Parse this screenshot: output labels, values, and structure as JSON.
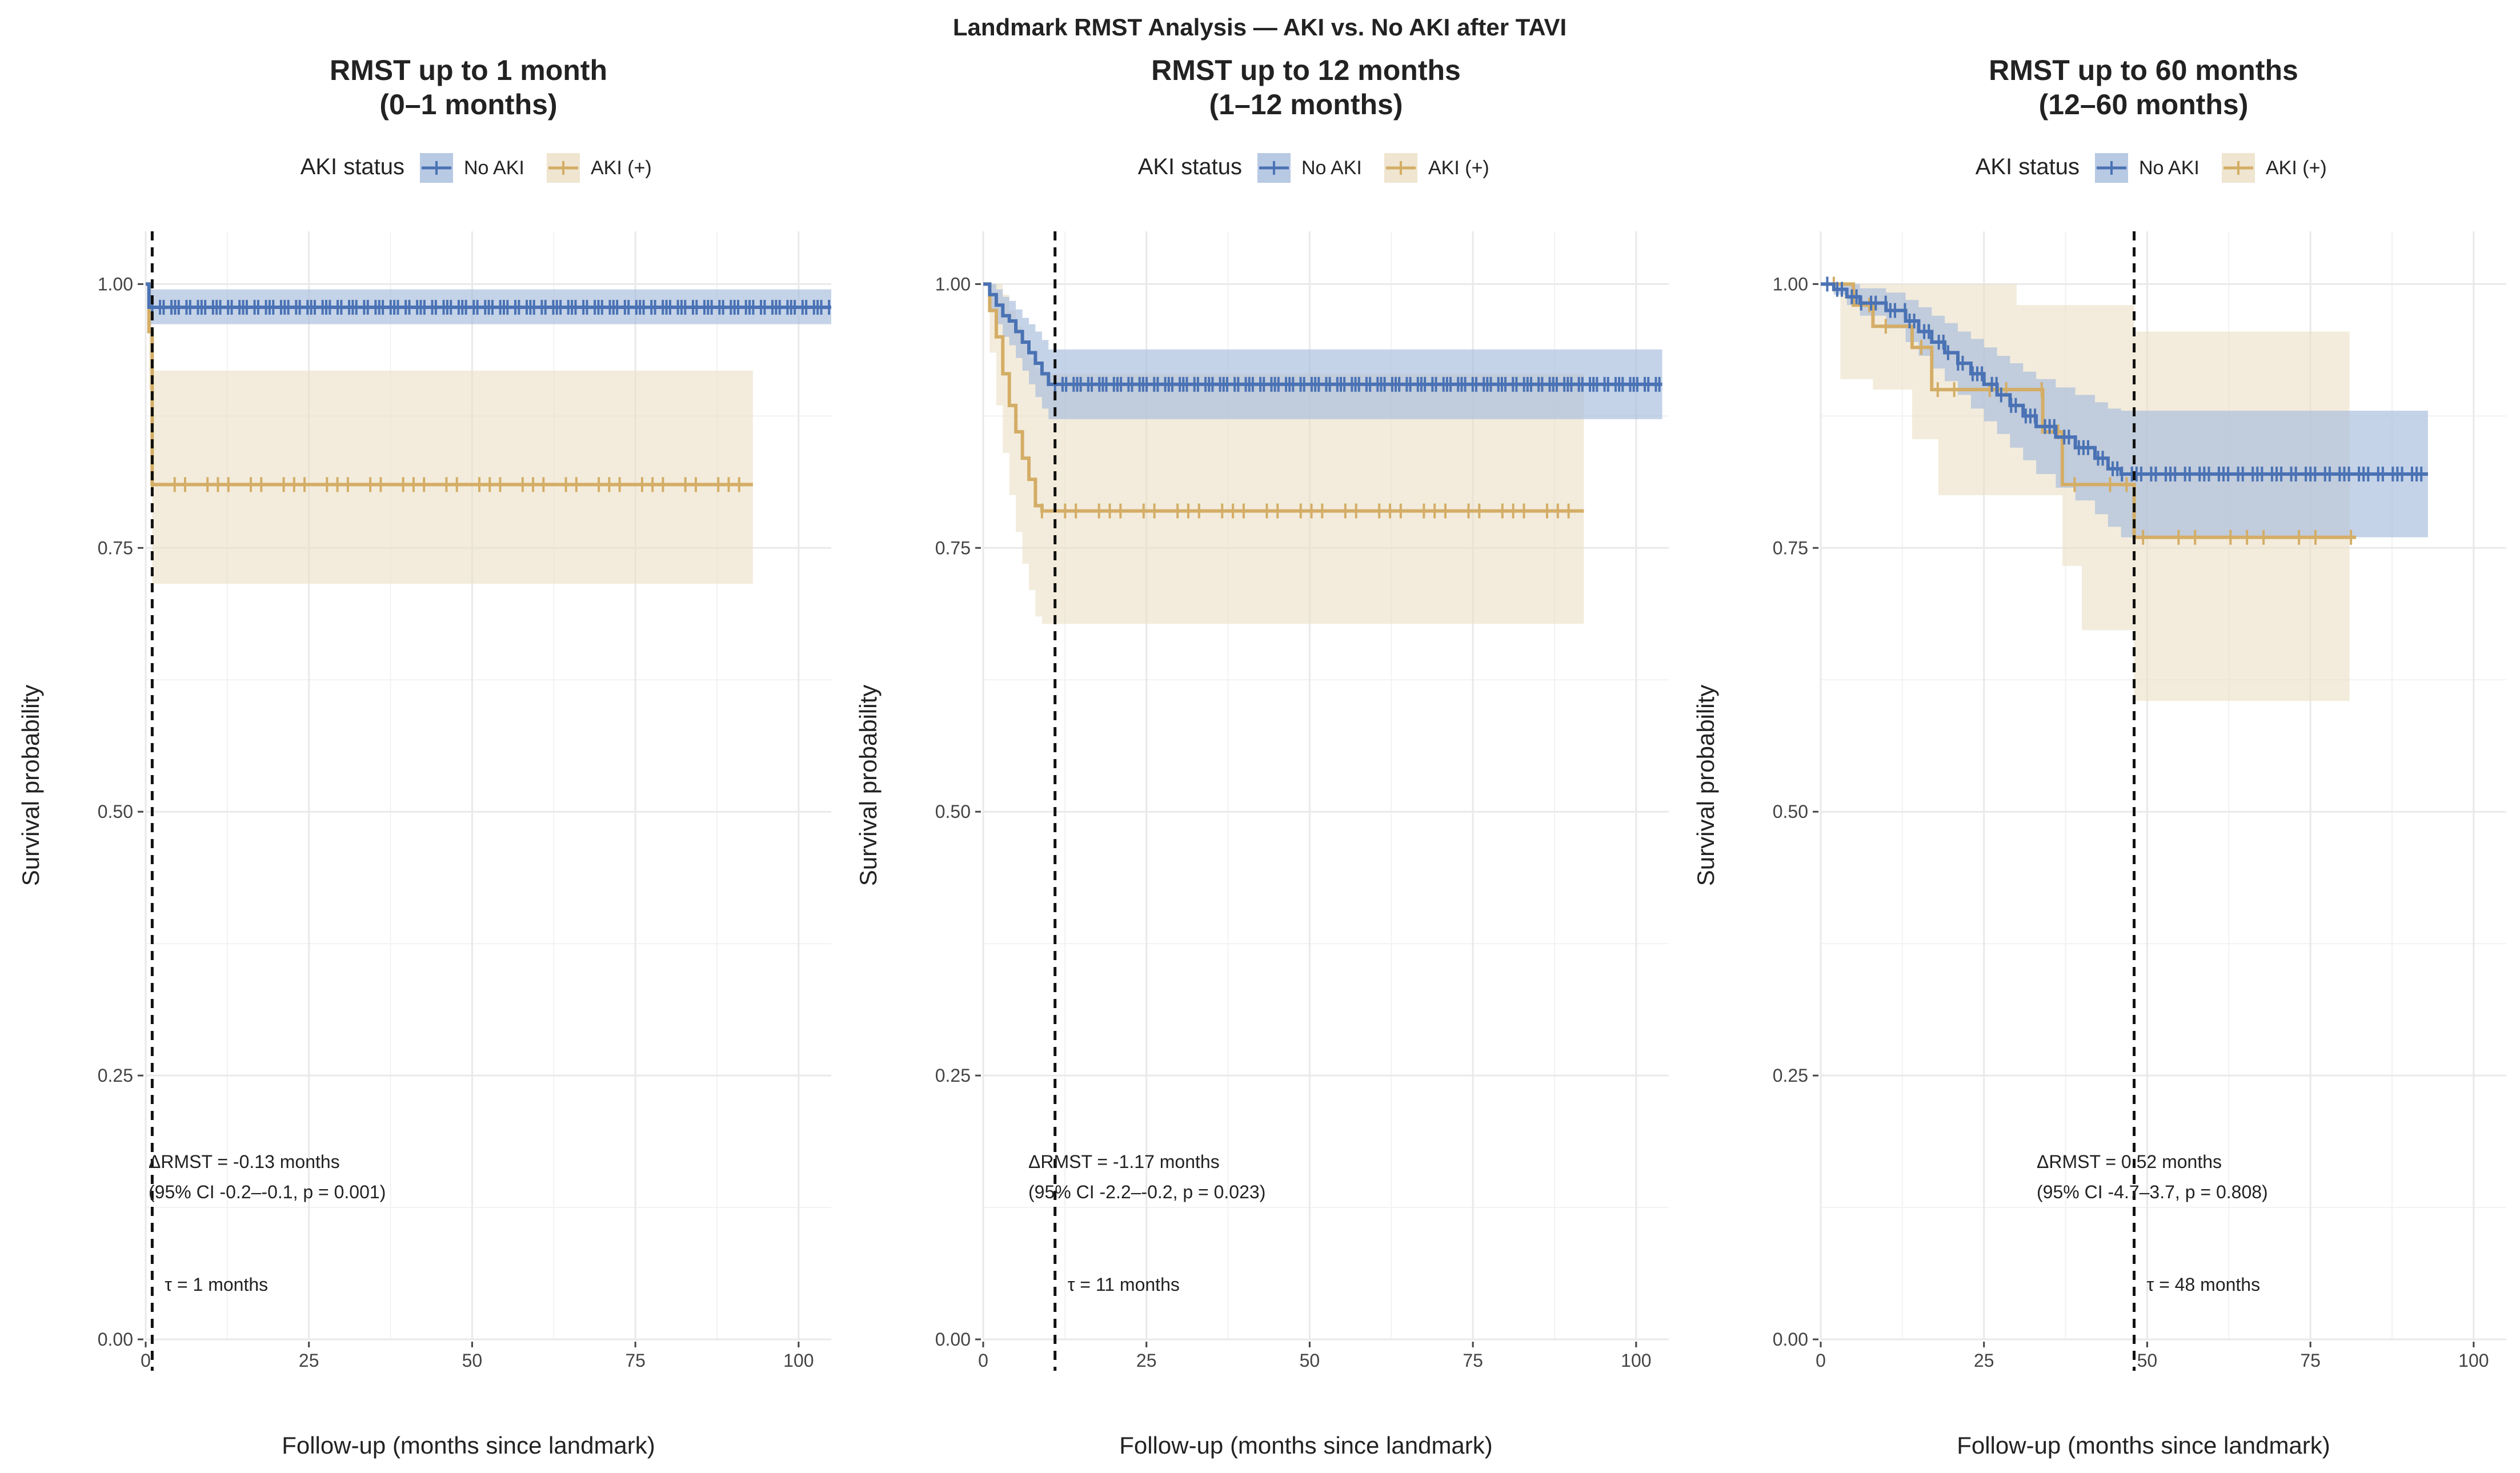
{
  "figure_title": "Landmark RMST Analysis — AKI vs. No AKI after TAVI",
  "colors": {
    "no_aki": "#4a72b4",
    "aki": "#d4ad66",
    "no_aki_band": "#a6bcdc",
    "aki_band": "#ebdfc4",
    "grid": "#e9e9e9",
    "text": "#222222"
  },
  "chart_data": [
    {
      "type": "line",
      "subtype": "kaplan-meier",
      "title": "RMST up to 1 month",
      "subtitle": "(0–1 months)",
      "legend_title": "AKI status",
      "xlabel": "Follow-up (months since landmark)",
      "ylabel": "Survival probability",
      "xlim": [
        0,
        105
      ],
      "ylim": [
        0,
        1.05
      ],
      "x_ticks": [
        0,
        25,
        50,
        75,
        100
      ],
      "x_tick_labels": [
        "0",
        "25",
        "50",
        "75",
        "100"
      ],
      "y_ticks": [
        0,
        0.25,
        0.5,
        0.75,
        1.0
      ],
      "y_tick_labels": [
        "0.00",
        "0.25",
        "0.50",
        "0.75",
        "1.00"
      ],
      "landmark": 1,
      "tau_label": "τ = 1 months",
      "delta_label": "ΔRMST = -0.13 months",
      "ci_label": "(95% CI -0.2–-0.1, p = 0.001)",
      "series": [
        {
          "name": "No AKI",
          "steps": [
            [
              0,
              1.0
            ],
            [
              0.5,
              0.978
            ],
            [
              105,
              0.978
            ]
          ],
          "ci": [
            [
              0,
              1.0,
              1.0
            ],
            [
              0.5,
              0.962,
              0.995
            ],
            [
              105,
              0.962,
              0.995
            ]
          ],
          "censor_range": [
            1,
            105
          ],
          "censor_count": 130
        },
        {
          "name": "AKI (+)",
          "steps": [
            [
              0,
              1.0
            ],
            [
              0.5,
              0.955
            ],
            [
              1,
              0.81
            ],
            [
              93,
              0.81
            ]
          ],
          "ci": [
            [
              0,
              1.0,
              1.0
            ],
            [
              0.5,
              0.9,
              1.0
            ],
            [
              1,
              0.716,
              0.918
            ],
            [
              93,
              0.716,
              0.918
            ]
          ],
          "censor_range": [
            1,
            93
          ],
          "censor_count": 40
        }
      ]
    },
    {
      "type": "line",
      "subtype": "kaplan-meier",
      "title": "RMST up to 12 months",
      "subtitle": "(1–12 months)",
      "legend_title": "AKI status",
      "xlabel": "Follow-up (months since landmark)",
      "ylabel": "Survival probability",
      "xlim": [
        0,
        105
      ],
      "ylim": [
        0,
        1.05
      ],
      "x_ticks": [
        0,
        25,
        50,
        75,
        100
      ],
      "x_tick_labels": [
        "0",
        "25",
        "50",
        "75",
        "100"
      ],
      "y_ticks": [
        0,
        0.25,
        0.5,
        0.75,
        1.0
      ],
      "y_tick_labels": [
        "0.00",
        "0.25",
        "0.50",
        "0.75",
        "1.00"
      ],
      "landmark": 11,
      "tau_label": "τ = 11 months",
      "delta_label": "ΔRMST = -1.17 months",
      "ci_label": "(95% CI -2.2–-0.2, p = 0.023)",
      "series": [
        {
          "name": "No AKI",
          "steps": [
            [
              0,
              1.0
            ],
            [
              1,
              0.99
            ],
            [
              2,
              0.98
            ],
            [
              3,
              0.97
            ],
            [
              4,
              0.965
            ],
            [
              5,
              0.955
            ],
            [
              6,
              0.945
            ],
            [
              7,
              0.935
            ],
            [
              8,
              0.925
            ],
            [
              9,
              0.915
            ],
            [
              10,
              0.905
            ],
            [
              104,
              0.905
            ]
          ],
          "ci": [
            [
              0,
              1.0,
              1.0
            ],
            [
              1,
              0.975,
              1.0
            ],
            [
              2,
              0.962,
              0.995
            ],
            [
              3,
              0.95,
              0.988
            ],
            [
              4,
              0.942,
              0.984
            ],
            [
              5,
              0.93,
              0.976
            ],
            [
              6,
              0.918,
              0.968
            ],
            [
              7,
              0.905,
              0.962
            ],
            [
              8,
              0.893,
              0.955
            ],
            [
              9,
              0.882,
              0.947
            ],
            [
              10,
              0.872,
              0.938
            ],
            [
              104,
              0.872,
              0.938
            ]
          ],
          "censor_range": [
            11,
            104
          ],
          "censor_count": 120
        },
        {
          "name": "AKI (+)",
          "steps": [
            [
              0,
              1.0
            ],
            [
              1,
              0.975
            ],
            [
              2,
              0.95
            ],
            [
              3,
              0.915
            ],
            [
              4,
              0.885
            ],
            [
              5,
              0.86
            ],
            [
              6,
              0.835
            ],
            [
              7,
              0.815
            ],
            [
              8,
              0.79
            ],
            [
              9,
              0.785
            ],
            [
              92,
              0.785
            ]
          ],
          "ci": [
            [
              0,
              1.0,
              1.0
            ],
            [
              1,
              0.935,
              1.0
            ],
            [
              2,
              0.885,
              1.0
            ],
            [
              3,
              0.84,
              0.99
            ],
            [
              4,
              0.8,
              0.975
            ],
            [
              5,
              0.765,
              0.96
            ],
            [
              6,
              0.735,
              0.945
            ],
            [
              7,
              0.71,
              0.93
            ],
            [
              8,
              0.685,
              0.92
            ],
            [
              9,
              0.678,
              0.915
            ],
            [
              92,
              0.678,
              0.915
            ]
          ],
          "censor_range": [
            9,
            92
          ],
          "censor_count": 35
        }
      ]
    },
    {
      "type": "line",
      "subtype": "kaplan-meier",
      "title": "RMST up to 60 months",
      "subtitle": "(12–60 months)",
      "legend_title": "AKI status",
      "xlabel": "Follow-up (months since landmark)",
      "ylabel": "Survival probability",
      "xlim": [
        0,
        105
      ],
      "ylim": [
        0,
        1.05
      ],
      "x_ticks": [
        0,
        25,
        50,
        75,
        100
      ],
      "x_tick_labels": [
        "0",
        "25",
        "50",
        "75",
        "100"
      ],
      "y_ticks": [
        0,
        0.25,
        0.5,
        0.75,
        1.0
      ],
      "y_tick_labels": [
        "0.00",
        "0.25",
        "0.50",
        "0.75",
        "1.00"
      ],
      "landmark": 48,
      "tau_label": "τ = 48 months",
      "delta_label": "ΔRMST = 0.52 months",
      "ci_label": "(95% CI -4.7–3.7, p = 0.808)",
      "series": [
        {
          "name": "No AKI",
          "steps": [
            [
              0,
              1.0
            ],
            [
              2,
              0.995
            ],
            [
              4,
              0.988
            ],
            [
              6,
              0.982
            ],
            [
              10,
              0.975
            ],
            [
              13,
              0.965
            ],
            [
              15,
              0.955
            ],
            [
              17,
              0.945
            ],
            [
              19,
              0.935
            ],
            [
              21,
              0.925
            ],
            [
              23,
              0.915
            ],
            [
              25,
              0.905
            ],
            [
              27,
              0.895
            ],
            [
              29,
              0.885
            ],
            [
              31,
              0.875
            ],
            [
              33,
              0.865
            ],
            [
              36,
              0.855
            ],
            [
              39,
              0.845
            ],
            [
              42,
              0.835
            ],
            [
              44,
              0.825
            ],
            [
              46,
              0.82
            ],
            [
              93,
              0.82
            ]
          ],
          "ci": [
            [
              0,
              1.0,
              1.0
            ],
            [
              2,
              0.99,
              1.0
            ],
            [
              4,
              0.98,
              1.0
            ],
            [
              6,
              0.97,
              0.996
            ],
            [
              10,
              0.958,
              0.992
            ],
            [
              13,
              0.945,
              0.985
            ],
            [
              15,
              0.932,
              0.978
            ],
            [
              17,
              0.92,
              0.97
            ],
            [
              19,
              0.908,
              0.963
            ],
            [
              21,
              0.895,
              0.955
            ],
            [
              23,
              0.882,
              0.948
            ],
            [
              25,
              0.87,
              0.94
            ],
            [
              27,
              0.858,
              0.932
            ],
            [
              29,
              0.845,
              0.925
            ],
            [
              31,
              0.833,
              0.917
            ],
            [
              33,
              0.82,
              0.91
            ],
            [
              36,
              0.807,
              0.902
            ],
            [
              39,
              0.795,
              0.895
            ],
            [
              42,
              0.782,
              0.888
            ],
            [
              44,
              0.77,
              0.882
            ],
            [
              46,
              0.76,
              0.88
            ],
            [
              93,
              0.76,
              0.88
            ]
          ],
          "censor_range": [
            1,
            93
          ],
          "censor_count": 90
        },
        {
          "name": "AKI (+)",
          "steps": [
            [
              0,
              1.0
            ],
            [
              5,
              0.98
            ],
            [
              8,
              0.96
            ],
            [
              14,
              0.94
            ],
            [
              17,
              0.9
            ],
            [
              34,
              0.86
            ],
            [
              37,
              0.81
            ],
            [
              48,
              0.76
            ],
            [
              82,
              0.76
            ]
          ],
          "ci": [
            [
              0,
              1.0,
              1.0
            ],
            [
              3,
              0.91,
              1.0
            ],
            [
              8,
              0.9,
              1.0
            ],
            [
              14,
              0.853,
              1.0
            ],
            [
              18,
              0.8,
              1.0
            ],
            [
              30,
              0.8,
              0.98
            ],
            [
              37,
              0.733,
              0.98
            ],
            [
              40,
              0.672,
              0.98
            ],
            [
              48,
              0.605,
              0.955
            ],
            [
              81,
              0.605,
              0.955
            ]
          ],
          "censor_range": [
            2,
            82
          ],
          "censor_count": 22
        }
      ]
    }
  ]
}
